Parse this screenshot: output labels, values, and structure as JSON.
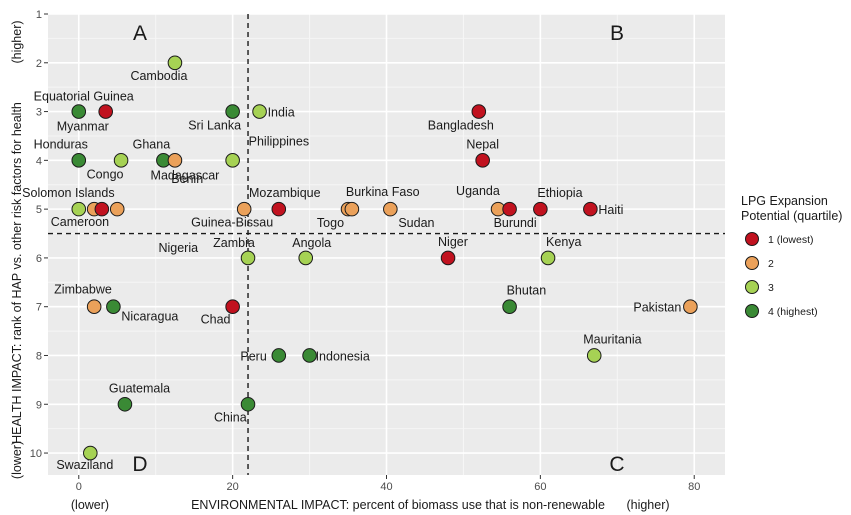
{
  "chart_data": {
    "type": "scatter",
    "xlabel": "ENVIRONMENTAL IMPACT: percent of biomass use that is non-renewable",
    "ylabel": "HEALTH IMPACT: rank of HAP vs. other risk factors for health",
    "x_low_label": "(lower)",
    "x_high_label": "(higher)",
    "y_low_label": "(lower)",
    "y_high_label": "(higher)",
    "xlim": [
      -4,
      84
    ],
    "ylim": [
      10.45,
      1
    ],
    "y_reversed": true,
    "x_ticks": [
      0,
      20,
      40,
      60,
      80
    ],
    "y_ticks": [
      1,
      2,
      3,
      4,
      5,
      6,
      7,
      8,
      9,
      10
    ],
    "grid": true,
    "x_threshold": 22,
    "y_threshold": 5.5,
    "quadrants": [
      "A",
      "B",
      "C",
      "D"
    ],
    "legend": {
      "title_line1": "LPG Expansion",
      "title_line2": "Potential (quartile)",
      "placement": "right",
      "entries": [
        {
          "label": "1 (lowest)",
          "color": "#c1121f"
        },
        {
          "label": "2",
          "color": "#eba15a"
        },
        {
          "label": "3",
          "color": "#a6d254"
        },
        {
          "label": "4 (highest)",
          "color": "#3a8a35"
        }
      ]
    },
    "points": [
      {
        "label": "Cambodia",
        "x": 12.5,
        "y": 2,
        "q": 3
      },
      {
        "label": "Equatorial Guinea",
        "x": 3.5,
        "y": 3,
        "q": 1
      },
      {
        "label": "Myanmar",
        "x": 0,
        "y": 3,
        "q": 4
      },
      {
        "label": "Sri Lanka",
        "x": 20,
        "y": 3,
        "q": 4
      },
      {
        "label": "India",
        "x": 23.5,
        "y": 3,
        "q": 3
      },
      {
        "label": "Bangladesh",
        "x": 52,
        "y": 3,
        "q": 1
      },
      {
        "label": "Honduras",
        "x": 0,
        "y": 4,
        "q": 4
      },
      {
        "label": "Congo",
        "x": 5.5,
        "y": 4,
        "q": 3
      },
      {
        "label": "Ghana",
        "x": 11,
        "y": 4,
        "q": 4
      },
      {
        "label": "Madagascar",
        "x": 12.5,
        "y": 4,
        "q": 2
      },
      {
        "label": "Philippines",
        "x": 20,
        "y": 4,
        "q": 3
      },
      {
        "label": "Nepal",
        "x": 52.5,
        "y": 4,
        "q": 1
      },
      {
        "label": "Cameroon",
        "x": 0,
        "y": 5,
        "q": 3
      },
      {
        "label": "Solomon Islands",
        "x": 2,
        "y": 5,
        "q": 2
      },
      {
        "label": "",
        "x": 3,
        "y": 5,
        "q": 1
      },
      {
        "label": "",
        "x": 5,
        "y": 5,
        "q": 2
      },
      {
        "label": "Benin",
        "x": 21.5,
        "y": 5,
        "q": 2
      },
      {
        "label": "Mozambique",
        "x": 26,
        "y": 5,
        "q": 1
      },
      {
        "label": "Togo",
        "x": 35,
        "y": 5,
        "q": 2
      },
      {
        "label": "Burkina Faso",
        "x": 35.5,
        "y": 5,
        "q": 2
      },
      {
        "label": "Sudan",
        "x": 40.5,
        "y": 5,
        "q": 2
      },
      {
        "label": "Uganda",
        "x": 54.5,
        "y": 5,
        "q": 2
      },
      {
        "label": "Burundi",
        "x": 56,
        "y": 5,
        "q": 1
      },
      {
        "label": "Ethiopia",
        "x": 60,
        "y": 5,
        "q": 1
      },
      {
        "label": "Haiti",
        "x": 66.5,
        "y": 5,
        "q": 1
      },
      {
        "label": "Zambia",
        "x": 22,
        "y": 6,
        "q": 3
      },
      {
        "label": "Angola",
        "x": 29.5,
        "y": 6,
        "q": 3
      },
      {
        "label": "Niger",
        "x": 48,
        "y": 6,
        "q": 1
      },
      {
        "label": "Kenya",
        "x": 61,
        "y": 6,
        "q": 3
      },
      {
        "label": "Zimbabwe",
        "x": 2,
        "y": 7,
        "q": 2
      },
      {
        "label": "Nicaragua",
        "x": 4.5,
        "y": 7,
        "q": 4
      },
      {
        "label": "Chad",
        "x": 20,
        "y": 7,
        "q": 1
      },
      {
        "label": "Bhutan",
        "x": 56,
        "y": 7,
        "q": 4
      },
      {
        "label": "Pakistan",
        "x": 79.5,
        "y": 7,
        "q": 2
      },
      {
        "label": "Peru",
        "x": 26,
        "y": 8,
        "q": 4
      },
      {
        "label": "Indonesia",
        "x": 30,
        "y": 8,
        "q": 4
      },
      {
        "label": "Mauritania",
        "x": 67,
        "y": 8,
        "q": 3
      },
      {
        "label": "Guatemala",
        "x": 6,
        "y": 9,
        "q": 4
      },
      {
        "label": "China",
        "x": 22,
        "y": 9,
        "q": 4
      },
      {
        "label": "Swaziland",
        "x": 1.5,
        "y": 10,
        "q": 3
      }
    ],
    "free_labels": [
      {
        "label": "Nigeria",
        "x": 7.5,
        "y": 5.8
      },
      {
        "label": "Guinea-Bissau",
        "x": 15,
        "y": 5.25
      }
    ]
  }
}
